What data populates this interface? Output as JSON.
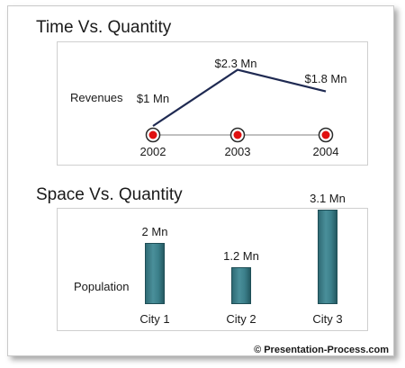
{
  "chart_data": [
    {
      "type": "line",
      "title": "Time Vs. Quantity",
      "ylabel": "Revenues",
      "categories": [
        "2002",
        "2003",
        "2004"
      ],
      "values": [
        1.0,
        2.3,
        1.8
      ],
      "data_labels": [
        "$1 Mn",
        "$2.3 Mn",
        "$1.8 Mn"
      ],
      "grid": false,
      "colors": {
        "line": "#1f2a52",
        "marker": "#e01010",
        "timeline": "#9a9a9a"
      }
    },
    {
      "type": "bar",
      "title": "Space Vs. Quantity",
      "ylabel": "Population",
      "categories": [
        "City 1",
        "City 2",
        "City 3"
      ],
      "values": [
        2.0,
        1.2,
        3.1
      ],
      "data_labels": [
        "2 Mn",
        "1.2 Mn",
        "3.1 Mn"
      ],
      "grid": false,
      "colors": {
        "bar": "#3b7f8a"
      }
    }
  ],
  "footer": {
    "copyright": "© Presentation-Process.com"
  }
}
